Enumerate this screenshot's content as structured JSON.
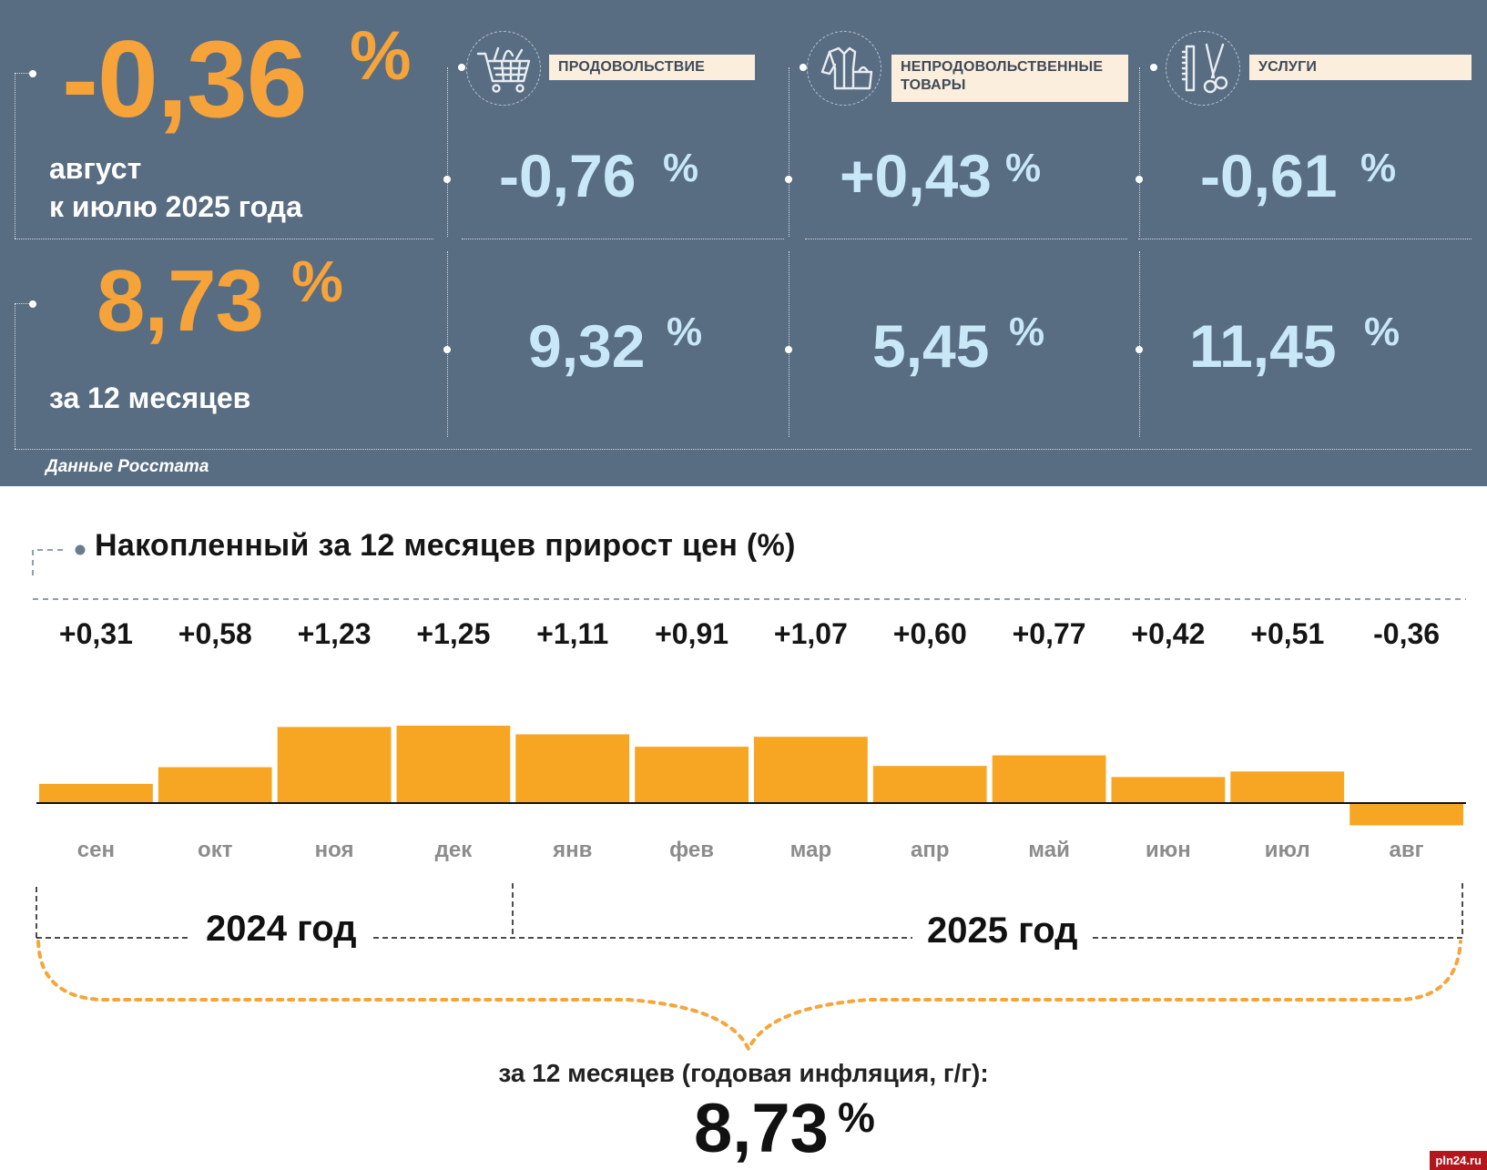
{
  "summary": {
    "monthly": {
      "value": "-0,36",
      "unit": "%",
      "line1": "август",
      "line2": "к июлю 2025 года"
    },
    "annual": {
      "value": "8,73",
      "unit": "%",
      "label": "за 12 месяцев"
    },
    "source": "Данные Росстата"
  },
  "categories": [
    {
      "name": "ПРОДОВОЛЬСТВИЕ",
      "icon": "shopping-cart-icon",
      "monthly": "-0,76",
      "annual": "9,32",
      "unit": "%"
    },
    {
      "name_line1": "НЕПРОДОВОЛЬСТВЕННЫЕ",
      "name_line2": "ТОВАРЫ",
      "icon": "clothes-bag-icon",
      "monthly": "+0,43",
      "annual": "5,45",
      "unit": "%"
    },
    {
      "name": "УСЛУГИ",
      "icon": "comb-scissors-icon",
      "monthly": "-0,61",
      "annual": "11,45",
      "unit": "%"
    }
  ],
  "chart_data": {
    "type": "bar",
    "title": "Накопленный за 12 месяцев прирост цен (%)",
    "categories": [
      "сен",
      "окт",
      "ноя",
      "дек",
      "янв",
      "фев",
      "мар",
      "апр",
      "май",
      "июн",
      "июл",
      "авг"
    ],
    "values": [
      0.31,
      0.58,
      1.23,
      1.25,
      1.11,
      0.91,
      1.07,
      0.6,
      0.77,
      0.42,
      0.51,
      -0.36
    ],
    "value_labels": [
      "+0,31",
      "+0,58",
      "+1,23",
      "+1,25",
      "+1,11",
      "+0,91",
      "+1,07",
      "+0,60",
      "+0,77",
      "+0,42",
      "+0,51",
      "-0,36"
    ],
    "years": [
      "2024 год",
      "2025 год"
    ],
    "bar_color": "#f6a623",
    "xlabel": "",
    "ylabel": ""
  },
  "footer": {
    "label": "за 12 месяцев (годовая инфляция, г/г):",
    "value": "8,73",
    "unit": "%"
  },
  "watermark": "pln24.ru",
  "colors": {
    "panel": "#586d82",
    "accent_orange": "#f6a33a",
    "light_blue": "#c8e7f7",
    "label_bg": "#fbeedd"
  }
}
